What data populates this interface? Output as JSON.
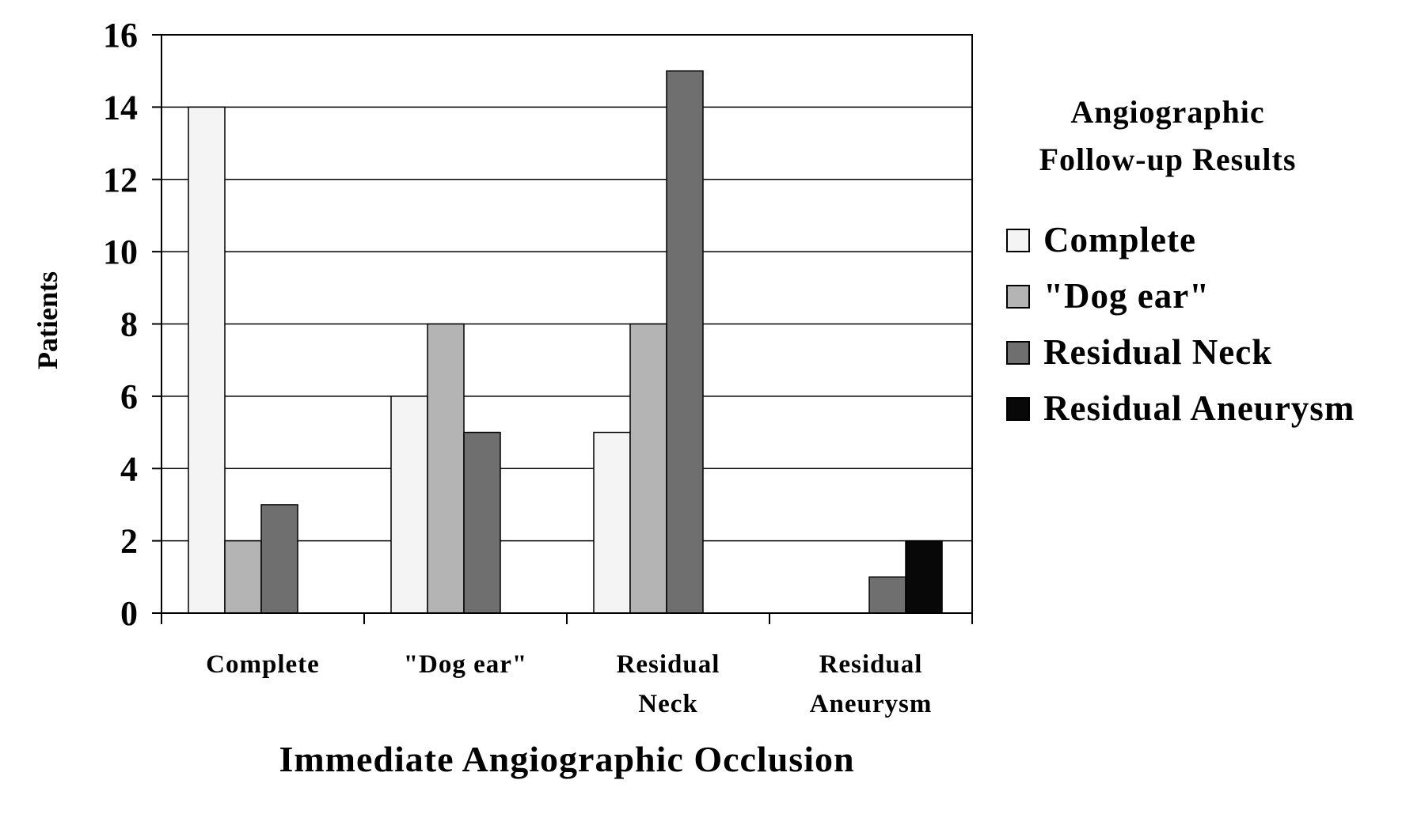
{
  "chart_data": {
    "type": "bar",
    "title": "",
    "xlabel": "Immediate Angiographic Occlusion",
    "ylabel": "Patients",
    "ylim": [
      0,
      16
    ],
    "yticks": [
      0,
      2,
      4,
      6,
      8,
      10,
      12,
      14,
      16
    ],
    "categories": [
      [
        "Complete"
      ],
      [
        "\"Dog ear\""
      ],
      [
        "Residual",
        "Neck"
      ],
      [
        "Residual",
        "Aneurysm"
      ]
    ],
    "legend_title": [
      "Angiographic",
      "Follow-up Results"
    ],
    "legend_position": "right",
    "grid": true,
    "series": [
      {
        "name": "Complete",
        "color": "#f4f4f4",
        "values": [
          14,
          6,
          5,
          0
        ]
      },
      {
        "name": "\"Dog ear\"",
        "color": "#b4b4b4",
        "values": [
          2,
          8,
          8,
          0
        ]
      },
      {
        "name": "Residual Neck",
        "color": "#6f6f6f",
        "values": [
          3,
          5,
          15,
          1
        ]
      },
      {
        "name": "Residual Aneurysm",
        "color": "#080808",
        "values": [
          0,
          0,
          0,
          2
        ]
      }
    ]
  }
}
